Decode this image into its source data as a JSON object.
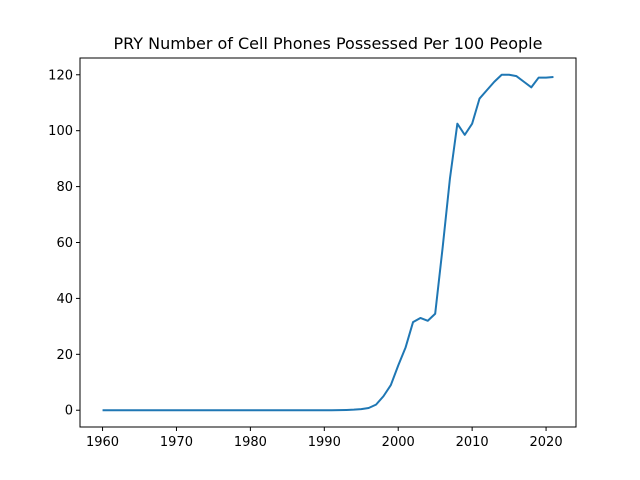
{
  "chart_data": {
    "type": "line",
    "title": "PRY Number of Cell Phones Possessed Per 100 People",
    "xlabel": "",
    "ylabel": "",
    "xlim": [
      1956.95,
      2024.05
    ],
    "ylim": [
      -6,
      126
    ],
    "x_ticks": [
      1960,
      1970,
      1980,
      1990,
      2000,
      2010,
      2020
    ],
    "y_ticks": [
      0,
      20,
      40,
      60,
      80,
      100,
      120
    ],
    "grid": false,
    "legend": "none",
    "series": [
      {
        "color": "#1f77b4",
        "x": [
          1960,
          1961,
          1962,
          1963,
          1964,
          1965,
          1966,
          1967,
          1968,
          1969,
          1970,
          1971,
          1972,
          1973,
          1974,
          1975,
          1976,
          1977,
          1978,
          1979,
          1980,
          1981,
          1982,
          1983,
          1984,
          1985,
          1986,
          1987,
          1988,
          1989,
          1990,
          1991,
          1992,
          1993,
          1994,
          1995,
          1996,
          1997,
          1998,
          1999,
          2000,
          2001,
          2002,
          2003,
          2004,
          2005,
          2006,
          2007,
          2008,
          2009,
          2010,
          2011,
          2012,
          2013,
          2014,
          2015,
          2016,
          2017,
          2018,
          2019,
          2020,
          2021
        ],
        "values": [
          0,
          0,
          0,
          0,
          0,
          0,
          0,
          0,
          0,
          0,
          0,
          0,
          0,
          0,
          0,
          0,
          0,
          0,
          0,
          0,
          0,
          0,
          0,
          0,
          0,
          0,
          0,
          0,
          0,
          0,
          0,
          0,
          0.05,
          0.1,
          0.2,
          0.4,
          0.8,
          2,
          5,
          9,
          16,
          22.5,
          31.5,
          33,
          32,
          34.5,
          58,
          83,
          102.5,
          98.5,
          102.5,
          111.5,
          114.5,
          117.5,
          120,
          120,
          119.5,
          117.5,
          115.5,
          119,
          119,
          119.2
        ]
      }
    ]
  }
}
